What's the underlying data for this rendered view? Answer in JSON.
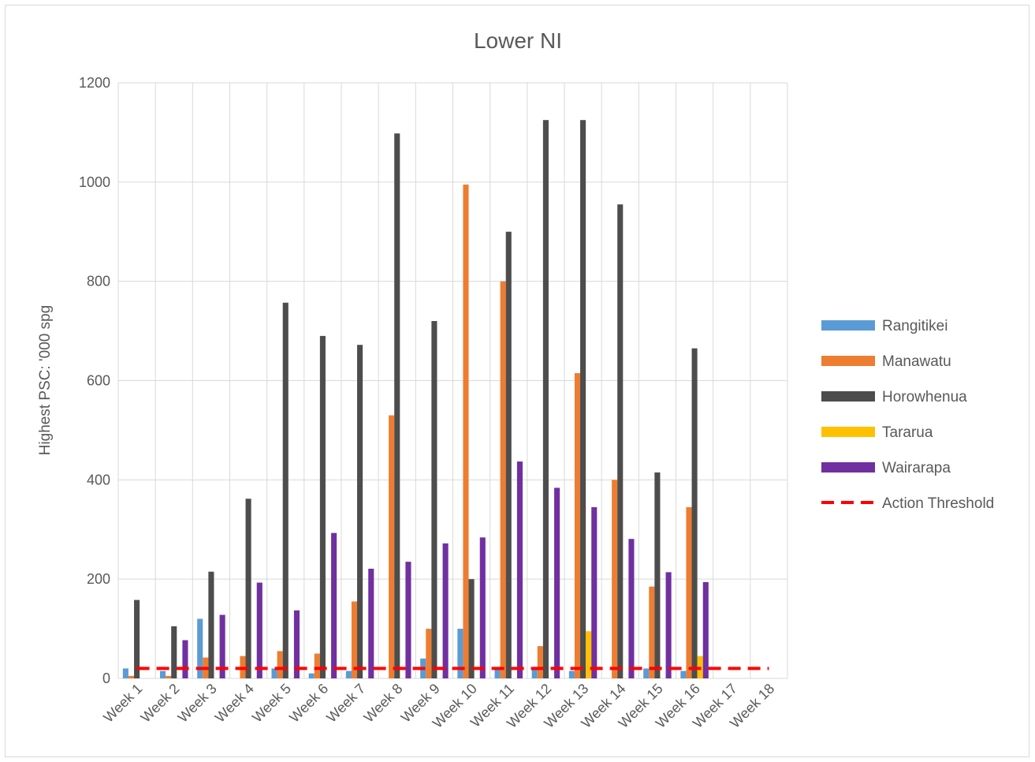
{
  "chart_data": {
    "type": "bar",
    "title": "Lower NI",
    "xlabel": "",
    "ylabel": "Highest PSC: '000 spg",
    "ylim": [
      0,
      1200
    ],
    "yticks": [
      0,
      200,
      400,
      600,
      800,
      1000,
      1200
    ],
    "grid": true,
    "legend_position": "right",
    "categories": [
      "Week 1",
      "Week 2",
      "Week 3",
      "Week 4",
      "Week 5",
      "Week 6",
      "Week 7",
      "Week 8",
      "Week 9",
      "Week 10",
      "Week 11",
      "Week 12",
      "Week 13",
      "Week 14",
      "Week 15",
      "Week 16",
      "Week 17",
      "Week 18"
    ],
    "series": [
      {
        "name": "Rangitikei",
        "color": "#5B9BD5",
        "type": "bar",
        "values": [
          20,
          15,
          120,
          0,
          20,
          10,
          15,
          0,
          40,
          100,
          20,
          20,
          15,
          0,
          20,
          15,
          0,
          0
        ]
      },
      {
        "name": "Manawatu",
        "color": "#ED7D31",
        "type": "bar",
        "values": [
          5,
          5,
          42,
          45,
          55,
          50,
          155,
          530,
          100,
          995,
          800,
          65,
          615,
          400,
          185,
          345,
          0,
          0
        ]
      },
      {
        "name": "Horowhenua",
        "color": "#4D4D4D",
        "type": "bar",
        "values": [
          158,
          105,
          215,
          362,
          757,
          690,
          672,
          1098,
          720,
          200,
          900,
          1125,
          1125,
          955,
          415,
          665,
          0,
          0
        ]
      },
      {
        "name": "Tararua",
        "color": "#FFC000",
        "type": "bar",
        "values": [
          0,
          0,
          0,
          0,
          0,
          0,
          0,
          0,
          0,
          0,
          0,
          0,
          95,
          0,
          0,
          45,
          0,
          0
        ]
      },
      {
        "name": "Wairarapa",
        "color": "#7030A0",
        "type": "bar",
        "values": [
          0,
          77,
          128,
          193,
          137,
          293,
          221,
          235,
          272,
          284,
          437,
          384,
          345,
          281,
          214,
          194,
          0,
          0
        ]
      },
      {
        "name": "Action Threshold",
        "color": "#FF0000",
        "type": "line-dashed",
        "values": [
          20,
          20,
          20,
          20,
          20,
          20,
          20,
          20,
          20,
          20,
          20,
          20,
          20,
          20,
          20,
          20,
          20,
          20
        ]
      }
    ]
  }
}
